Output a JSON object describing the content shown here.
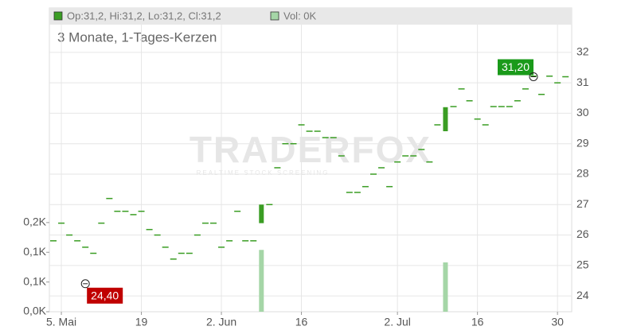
{
  "chart_data": {
    "type": "candlestick",
    "subtitle": "3 Monate, 1-Tages-Kerzen",
    "watermark": "TRADERFOX",
    "watermark_tagline": "REALTIME STOCK SCREENING",
    "legend": [
      {
        "name": "Op:31,2, Hi:31,2, Lo:31,2, Cl:31,2",
        "color": "#3a9d23"
      },
      {
        "name": "Vol: 0K",
        "color": "#a5d6a7"
      }
    ],
    "categories": [
      null,
      "5. Mai",
      null,
      null,
      null,
      null,
      null,
      null,
      null,
      null,
      null,
      "19",
      null,
      null,
      null,
      null,
      null,
      null,
      null,
      null,
      null,
      "2. Jun",
      null,
      null,
      null,
      null,
      null,
      null,
      null,
      null,
      null,
      "16",
      null,
      null,
      null,
      null,
      null,
      null,
      null,
      null,
      null,
      null,
      null,
      "2. Jul",
      null,
      null,
      null,
      null,
      null,
      null,
      null,
      null,
      null,
      "16",
      null,
      null,
      null,
      null,
      null,
      null,
      null,
      null,
      null,
      "30",
      null
    ],
    "open": [
      25.81,
      26.39,
      26.0,
      25.81,
      25.6,
      25.4,
      26.39,
      27.2,
      26.78,
      26.78,
      26.67,
      26.78,
      26.18,
      26.0,
      25.6,
      25.21,
      25.4,
      25.4,
      26.0,
      26.39,
      26.39,
      25.6,
      25.81,
      26.78,
      25.81,
      25.81,
      26.39,
      27.0,
      28.21,
      29.0,
      29.0,
      29.62,
      29.41,
      29.41,
      29.2,
      29.2,
      28.6,
      27.4,
      27.4,
      27.59,
      28.0,
      28.21,
      27.59,
      28.4,
      28.6,
      28.6,
      28.81,
      28.4,
      29.62,
      29.41,
      30.22,
      30.8,
      30.41,
      29.81,
      29.62,
      30.22,
      30.22,
      30.22,
      30.41,
      30.8,
      31.22,
      30.62,
      31.22,
      31.0,
      31.2
    ],
    "close": [
      25.81,
      26.39,
      26.0,
      25.81,
      25.6,
      25.4,
      26.39,
      27.2,
      26.78,
      26.78,
      26.67,
      26.78,
      26.18,
      26.0,
      25.6,
      25.21,
      25.4,
      25.4,
      26.0,
      26.39,
      26.39,
      25.6,
      25.81,
      26.78,
      25.81,
      25.81,
      27.0,
      27.0,
      28.21,
      29.0,
      29.0,
      29.62,
      29.41,
      29.41,
      29.2,
      29.2,
      28.6,
      27.4,
      27.4,
      27.59,
      28.0,
      28.21,
      27.59,
      28.4,
      28.6,
      28.6,
      28.81,
      28.4,
      29.62,
      30.2,
      30.22,
      30.8,
      30.41,
      29.81,
      29.62,
      30.22,
      30.22,
      30.22,
      30.41,
      30.8,
      31.22,
      30.62,
      31.22,
      31.0,
      31.2
    ],
    "volume": [
      0,
      0,
      0,
      0,
      0,
      0,
      0,
      0,
      0,
      0,
      0,
      0,
      0,
      0,
      0,
      0,
      0,
      0,
      0,
      0,
      0,
      0,
      0,
      0,
      0,
      0,
      104,
      0,
      0,
      0,
      0,
      0,
      0,
      0,
      0,
      0,
      0,
      0,
      0,
      0,
      0,
      0,
      0,
      0,
      0,
      0,
      0,
      0,
      0,
      83,
      0,
      0,
      0,
      0,
      0,
      0,
      0,
      0,
      0,
      0,
      0,
      0,
      0,
      0,
      0
    ],
    "color": "#3a9d23",
    "volume_color": "#a5d6a7",
    "ylim": [
      23.48,
      33.46
    ],
    "yticks": [
      24,
      25,
      26,
      27,
      28,
      29,
      30,
      31,
      32
    ],
    "y2lim": [
      0,
      511
    ],
    "y2ticks": [
      {
        "value": 0,
        "label": "0,0K"
      },
      {
        "value": 50,
        "label": "0,1K"
      },
      {
        "value": 100,
        "label": "0,1K"
      },
      {
        "value": 150,
        "label": "0,2K"
      }
    ],
    "annotations": [
      {
        "index": 60,
        "value": 31.2,
        "label": "31,20",
        "color": "#1a9a1a"
      },
      {
        "index": 4,
        "value": 24.4,
        "label": "24,40",
        "color": "#c00000"
      }
    ],
    "grid": true
  }
}
